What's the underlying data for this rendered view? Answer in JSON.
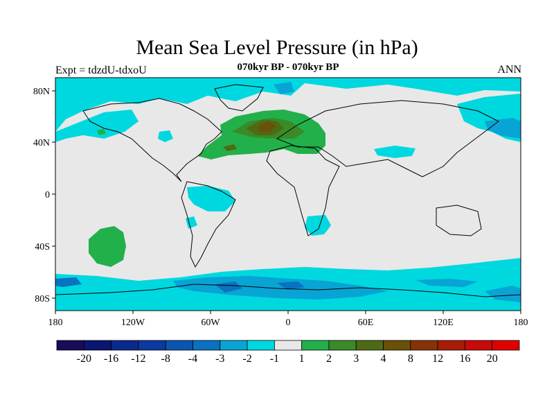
{
  "title": "Mean Sea Level Pressure (in hPa)",
  "subtitle": "070kyr BP - 070kyr BP",
  "experiment": "Expt = tdzdU-tdxoU",
  "season": "ANN",
  "x_ticks": [
    "180",
    "120W",
    "60W",
    "0",
    "60E",
    "120E",
    "180"
  ],
  "y_ticks": [
    "80N",
    "40N",
    "0",
    "40S",
    "80S"
  ],
  "colorbar": {
    "labels": [
      "-20",
      "-16",
      "-12",
      "-8",
      "-4",
      "-3",
      "-2",
      "-1",
      "1",
      "2",
      "3",
      "4",
      "8",
      "12",
      "16",
      "20"
    ],
    "colors": [
      "#1a0a5a",
      "#0a1670",
      "#0b2a8c",
      "#0c3aa0",
      "#0a55b0",
      "#0a72c0",
      "#08a4d4",
      "#00d8e0",
      "#e8e8e8",
      "#22b04a",
      "#3a8a28",
      "#4e6a14",
      "#6a5008",
      "#883208",
      "#a81c08",
      "#c80a0a",
      "#e00000"
    ]
  },
  "colors": {
    "land": "#e8e8e8",
    "ocean_neutral": "#e8e8e8",
    "cyan": "#00d8e0",
    "light_blue": "#08a4d4",
    "mid_blue": "#0a72c0",
    "green": "#22b04a",
    "dark_green": "#3a8a28",
    "olive": "#4e6a14",
    "brown": "#6a5008"
  }
}
